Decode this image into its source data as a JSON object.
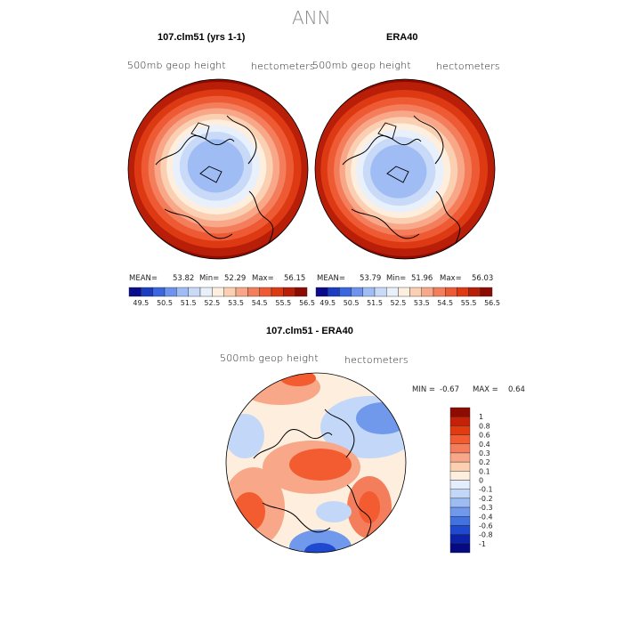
{
  "figure": {
    "title": "ANN",
    "panels": [
      {
        "title": "107.clm51 (yrs 1-1)",
        "left_label": "500mb geop height",
        "right_label": "hectometers",
        "stats": {
          "mean_label": "MEAN=",
          "mean": "53.82",
          "min_label": "Min=",
          "min": "52.29",
          "max_label": "Max=",
          "max": "56.15"
        }
      },
      {
        "title": "ERA40",
        "left_label": "500mb geop height",
        "right_label": "hectometers",
        "stats": {
          "mean_label": "MEAN=",
          "mean": "53.79",
          "min_label": "Min=",
          "min": "51.96",
          "max_label": "Max=",
          "max": "56.03"
        }
      },
      {
        "title": "107.clm51 - ERA40",
        "left_label": "500mb geop height",
        "right_label": "hectometers",
        "stats": {
          "min_label": "MIN =",
          "min": "-0.67",
          "max_label": "MAX =",
          "max": "0.64"
        }
      }
    ]
  },
  "colorbar_abs": {
    "labels": [
      "49.5",
      "50.5",
      "51.5",
      "52.5",
      "53.5",
      "54.5",
      "55.5",
      "56.5"
    ],
    "colors": [
      "#0a0a8c",
      "#1a3dc2",
      "#3a66e0",
      "#6e93ee",
      "#9fbdf4",
      "#c8daf8",
      "#e8f0fc",
      "#fdeede",
      "#fbd0b2",
      "#f8a888",
      "#f47e5c",
      "#ee5a34",
      "#dd3a14",
      "#b81e08",
      "#8c0c02"
    ]
  },
  "colorbar_diff": {
    "labels": [
      "1",
      "0.8",
      "0.6",
      "0.4",
      "0.3",
      "0.2",
      "0.1",
      "0",
      "-0.1",
      "-0.2",
      "-0.3",
      "-0.4",
      "-0.6",
      "-0.8",
      "-1"
    ],
    "colors": [
      "#8c0c02",
      "#c52008",
      "#e03c12",
      "#f25c30",
      "#f47e5c",
      "#f8a888",
      "#fbcfb0",
      "#fdeede",
      "#e3edfc",
      "#c3d8f8",
      "#9dbcf4",
      "#7099ec",
      "#4272e0",
      "#1f4ad0",
      "#0c22a8",
      "#050a82"
    ]
  },
  "chart_data": [
    {
      "type": "heatmap",
      "title": "107.clm51 (yrs 1-1)",
      "projection": "north polar stereographic",
      "variable": "500mb geop height",
      "units": "hectometers",
      "mean": 53.82,
      "min": 52.29,
      "max": 56.15,
      "levels": [
        49.5,
        50.0,
        50.5,
        51.0,
        51.5,
        52.0,
        52.5,
        53.0,
        53.5,
        54.0,
        54.5,
        55.0,
        55.5,
        56.0,
        56.5
      ]
    },
    {
      "type": "heatmap",
      "title": "ERA40",
      "projection": "north polar stereographic",
      "variable": "500mb geop height",
      "units": "hectometers",
      "mean": 53.79,
      "min": 51.96,
      "max": 56.03,
      "levels": [
        49.5,
        50.0,
        50.5,
        51.0,
        51.5,
        52.0,
        52.5,
        53.0,
        53.5,
        54.0,
        54.5,
        55.0,
        55.5,
        56.0,
        56.5
      ]
    },
    {
      "type": "heatmap",
      "title": "107.clm51 - ERA40",
      "projection": "north polar stereographic",
      "variable": "500mb geop height",
      "units": "hectometers",
      "min": -0.67,
      "max": 0.64,
      "levels": [
        -1,
        -0.8,
        -0.6,
        -0.4,
        -0.3,
        -0.2,
        -0.1,
        0,
        0.1,
        0.2,
        0.3,
        0.4,
        0.6,
        0.8,
        1
      ]
    }
  ]
}
